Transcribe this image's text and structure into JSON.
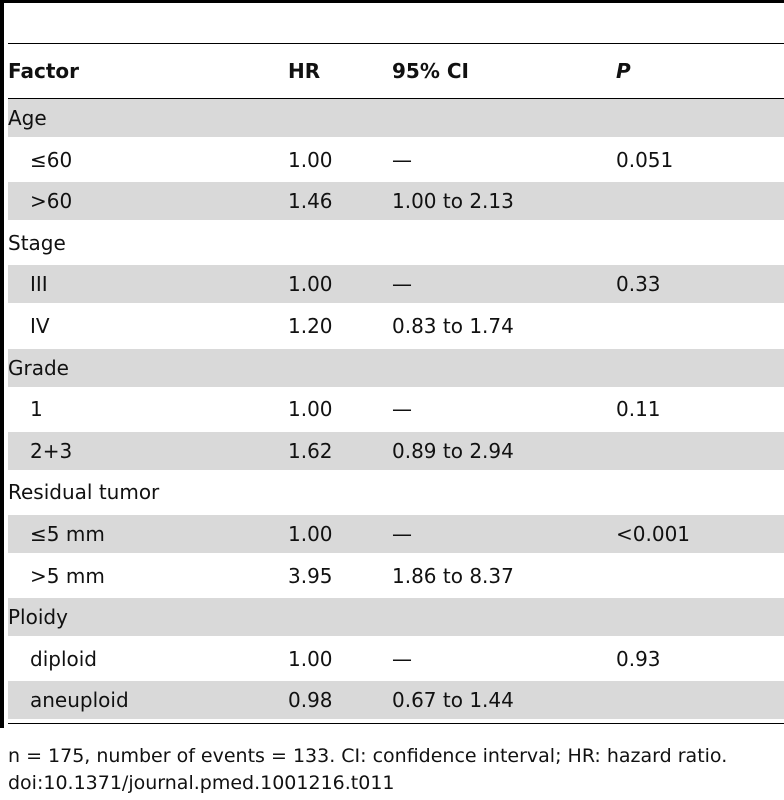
{
  "table": {
    "header": {
      "factor": "Factor",
      "hr": "HR",
      "ci": "95% CI",
      "p": "P"
    },
    "rows": [
      {
        "type": "group",
        "label": "Age"
      },
      {
        "type": "item",
        "label": "≤60",
        "hr": "1.00",
        "ci": "—",
        "p": "0.051"
      },
      {
        "type": "item",
        "label": ">60",
        "hr": "1.46",
        "ci": "1.00 to 2.13",
        "p": ""
      },
      {
        "type": "group",
        "label": "Stage"
      },
      {
        "type": "item",
        "label": "III",
        "hr": "1.00",
        "ci": "—",
        "p": "0.33"
      },
      {
        "type": "item",
        "label": "IV",
        "hr": "1.20",
        "ci": "0.83 to 1.74",
        "p": ""
      },
      {
        "type": "group",
        "label": "Grade"
      },
      {
        "type": "item",
        "label": "1",
        "hr": "1.00",
        "ci": "—",
        "p": "0.11"
      },
      {
        "type": "item",
        "label": "2+3",
        "hr": "1.62",
        "ci": "0.89 to 2.94",
        "p": ""
      },
      {
        "type": "group",
        "label": "Residual tumor"
      },
      {
        "type": "item",
        "label": "≤5 mm",
        "hr": "1.00",
        "ci": "—",
        "p": "<0.001"
      },
      {
        "type": "item",
        "label": ">5 mm",
        "hr": "3.95",
        "ci": "1.86 to 8.37",
        "p": ""
      },
      {
        "type": "group",
        "label": "Ploidy"
      },
      {
        "type": "item",
        "label": "diploid",
        "hr": "1.00",
        "ci": "—",
        "p": "0.93"
      },
      {
        "type": "item",
        "label": "aneuploid",
        "hr": "0.98",
        "ci": "0.67 to 1.44",
        "p": ""
      }
    ]
  },
  "footnote": {
    "line1": "n = 175, number of events = 133. CI: confidence interval; HR: hazard ratio.",
    "line2": "doi:10.1371/journal.pmed.1001216.t011"
  }
}
